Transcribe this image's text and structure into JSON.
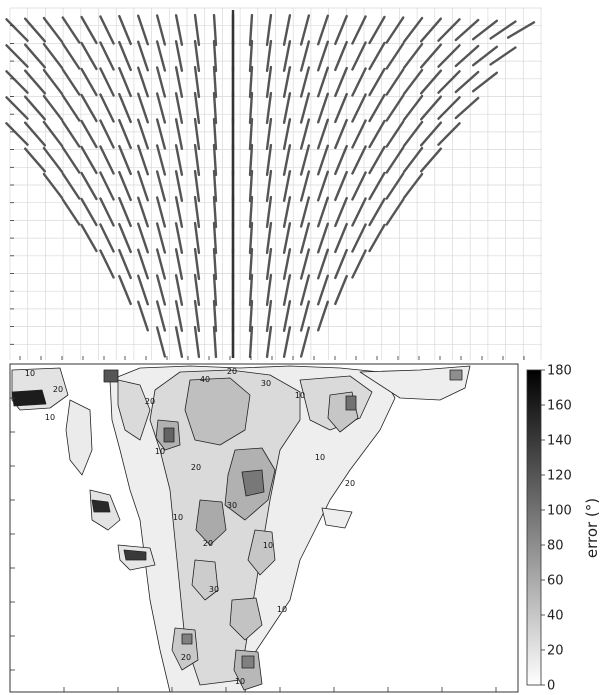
{
  "colors": {
    "grid": "#d9d9d9",
    "field_line": "#555555",
    "contour_line": "#222222",
    "frame": "#333333",
    "error_low": "#ffffff",
    "error_high": "#000000"
  },
  "chart_data": [
    {
      "type": "quiver",
      "panel": "top",
      "description_of_marks": "orientation field shown as line segments fanning out from a vertical center axis",
      "xlabel": "",
      "ylabel": "",
      "title": "",
      "grid": true,
      "rows": 13,
      "max_tilt_deg": 62
    },
    {
      "type": "heatmap",
      "panel": "bottom",
      "title": "",
      "xlabel": "",
      "ylabel": "",
      "colorbar": {
        "label": "error (°)",
        "range": [
          0,
          180
        ],
        "ticks": [
          0,
          20,
          40,
          60,
          80,
          100,
          120,
          140,
          160,
          180
        ],
        "colormap": "gray_reversed"
      },
      "contour_levels": [
        10,
        20,
        30,
        40,
        60
      ],
      "contour_labels": [
        {
          "text": "10"
        },
        {
          "text": "20"
        },
        {
          "text": "10"
        },
        {
          "text": "40"
        },
        {
          "text": "20"
        },
        {
          "text": "30"
        },
        {
          "text": "10"
        },
        {
          "text": "20"
        },
        {
          "text": "10"
        },
        {
          "text": "20"
        },
        {
          "text": "30"
        },
        {
          "text": "10"
        },
        {
          "text": "20"
        },
        {
          "text": "10"
        },
        {
          "text": "20"
        },
        {
          "text": "10"
        },
        {
          "text": "30"
        },
        {
          "text": "10"
        },
        {
          "text": "20"
        },
        {
          "text": "10"
        }
      ]
    }
  ]
}
